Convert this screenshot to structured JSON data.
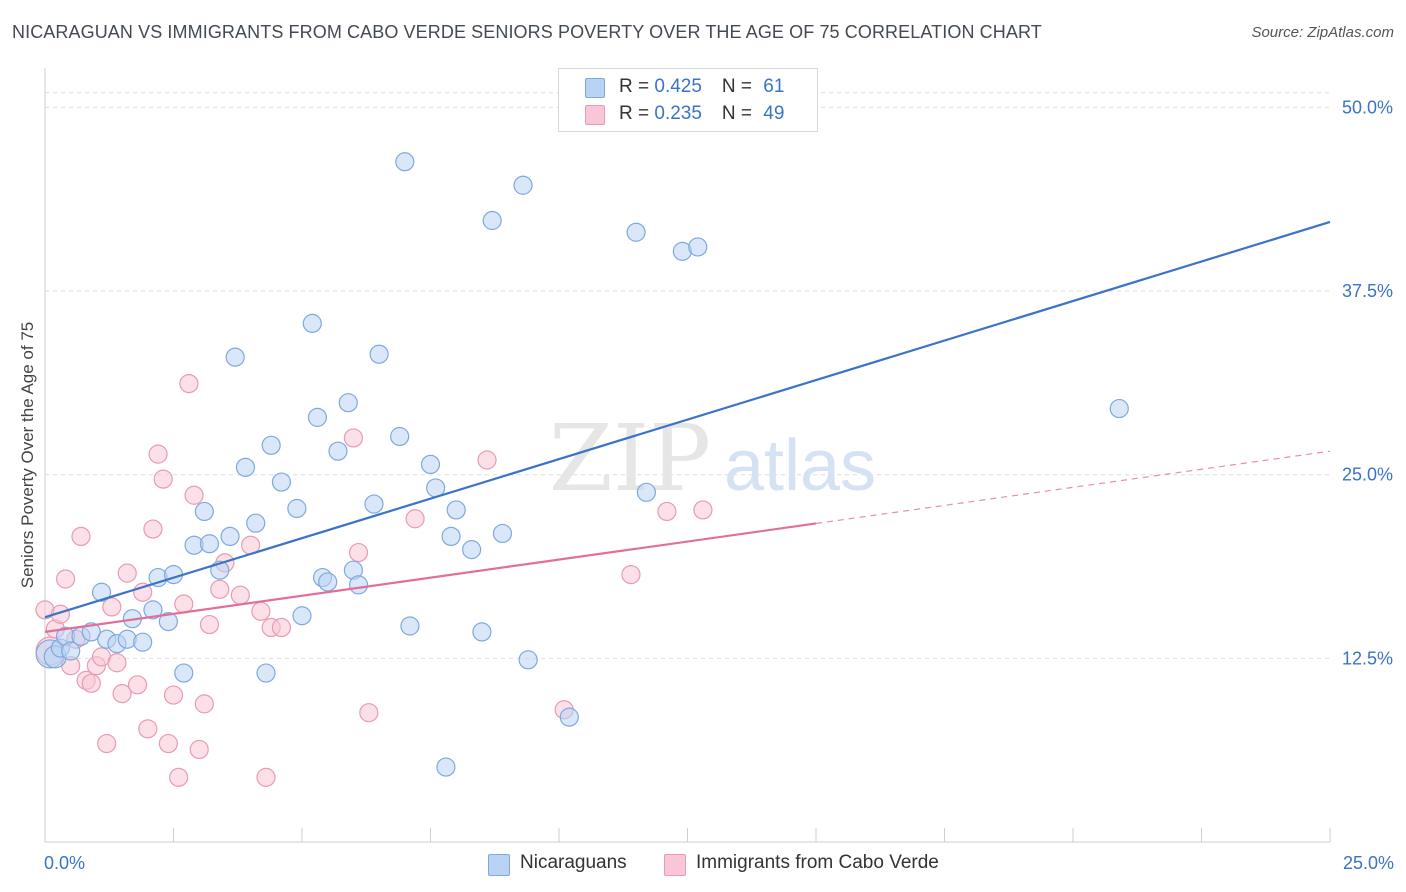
{
  "header": {
    "title": "NICARAGUAN VS IMMIGRANTS FROM CABO VERDE SENIORS POVERTY OVER THE AGE OF 75 CORRELATION CHART",
    "source": "Source: ZipAtlas.com"
  },
  "watermark": {
    "zip": "ZIP",
    "atlas": "atlas"
  },
  "legend": {
    "rows": [
      {
        "r_label": "R = ",
        "r_value": "0.425",
        "n_label": "N = ",
        "n_value": "61"
      },
      {
        "r_label": "R = ",
        "r_value": "0.235",
        "n_label": "N = ",
        "n_value": "49"
      }
    ]
  },
  "bottom_legend": {
    "series1": "Nicaraguans",
    "series2": "Immigrants from Cabo Verde"
  },
  "axis": {
    "x_min_label": "0.0%",
    "x_max_label": "25.0%"
  },
  "chart_data": {
    "type": "scatter",
    "title": "NICARAGUAN VS IMMIGRANTS FROM CABO VERDE SENIORS POVERTY OVER THE AGE OF 75 CORRELATION CHART",
    "xlabel": "",
    "ylabel": "Seniors Poverty Over the Age of 75",
    "xlim": [
      0,
      25
    ],
    "ylim": [
      0,
      52
    ],
    "y_ticks": [
      12.5,
      25.0,
      37.5,
      50.0
    ],
    "y_tick_labels": [
      "12.5%",
      "25.0%",
      "37.5%",
      "50.0%"
    ],
    "x_tick_labels": [
      "0.0%",
      "25.0%"
    ],
    "grid": "horizontal-dashed",
    "legend_position": "top-center",
    "colors": {
      "series1_fill": "#b9d3f4",
      "series1_stroke": "#7fa9dd",
      "series1_line": "#3a73c8",
      "series2_fill": "#f8c6d6",
      "series2_stroke": "#e99ab4",
      "series2_line": "#e0709a",
      "value_text": "#3a73c8"
    },
    "series": [
      {
        "name": "Nicaraguans",
        "r": 0.425,
        "n": 61,
        "trend": {
          "x": [
            0,
            25
          ],
          "y": [
            15.3,
            42.2
          ],
          "dashed_from_x": null
        },
        "points": [
          {
            "x": 0.1,
            "y": 12.8,
            "s": 14
          },
          {
            "x": 0.2,
            "y": 12.6,
            "s": 11
          },
          {
            "x": 0.3,
            "y": 13.2,
            "s": 9
          },
          {
            "x": 0.4,
            "y": 14.0,
            "s": 9
          },
          {
            "x": 0.5,
            "y": 13.0,
            "s": 9
          },
          {
            "x": 0.7,
            "y": 14.0,
            "s": 9
          },
          {
            "x": 0.9,
            "y": 14.3,
            "s": 9
          },
          {
            "x": 1.1,
            "y": 17.0,
            "s": 9
          },
          {
            "x": 1.2,
            "y": 13.8,
            "s": 9
          },
          {
            "x": 1.4,
            "y": 13.5,
            "s": 9
          },
          {
            "x": 1.6,
            "y": 13.8,
            "s": 9
          },
          {
            "x": 1.7,
            "y": 15.2,
            "s": 9
          },
          {
            "x": 1.9,
            "y": 13.6,
            "s": 9
          },
          {
            "x": 2.1,
            "y": 15.8,
            "s": 9
          },
          {
            "x": 2.2,
            "y": 18.0,
            "s": 9
          },
          {
            "x": 2.4,
            "y": 15.0,
            "s": 9
          },
          {
            "x": 2.5,
            "y": 18.2,
            "s": 9
          },
          {
            "x": 2.7,
            "y": 11.5,
            "s": 9
          },
          {
            "x": 2.9,
            "y": 20.2,
            "s": 9
          },
          {
            "x": 3.1,
            "y": 22.5,
            "s": 9
          },
          {
            "x": 3.2,
            "y": 20.3,
            "s": 9
          },
          {
            "x": 3.4,
            "y": 18.5,
            "s": 9
          },
          {
            "x": 3.6,
            "y": 20.8,
            "s": 9
          },
          {
            "x": 3.7,
            "y": 33.0,
            "s": 9
          },
          {
            "x": 3.9,
            "y": 25.5,
            "s": 9
          },
          {
            "x": 4.1,
            "y": 21.7,
            "s": 9
          },
          {
            "x": 4.3,
            "y": 11.5,
            "s": 9
          },
          {
            "x": 4.4,
            "y": 27.0,
            "s": 9
          },
          {
            "x": 4.6,
            "y": 24.5,
            "s": 9
          },
          {
            "x": 4.9,
            "y": 22.7,
            "s": 9
          },
          {
            "x": 5.0,
            "y": 15.4,
            "s": 9
          },
          {
            "x": 5.2,
            "y": 35.3,
            "s": 9
          },
          {
            "x": 5.3,
            "y": 28.9,
            "s": 9
          },
          {
            "x": 5.4,
            "y": 18.0,
            "s": 9
          },
          {
            "x": 5.5,
            "y": 17.7,
            "s": 9
          },
          {
            "x": 5.7,
            "y": 26.6,
            "s": 9
          },
          {
            "x": 5.9,
            "y": 29.9,
            "s": 9
          },
          {
            "x": 6.0,
            "y": 18.5,
            "s": 9
          },
          {
            "x": 6.1,
            "y": 17.5,
            "s": 9
          },
          {
            "x": 6.4,
            "y": 23.0,
            "s": 9
          },
          {
            "x": 6.5,
            "y": 33.2,
            "s": 9
          },
          {
            "x": 6.9,
            "y": 27.6,
            "s": 9
          },
          {
            "x": 7.0,
            "y": 46.3,
            "s": 9
          },
          {
            "x": 7.1,
            "y": 14.7,
            "s": 9
          },
          {
            "x": 7.5,
            "y": 25.7,
            "s": 9
          },
          {
            "x": 7.6,
            "y": 24.1,
            "s": 9
          },
          {
            "x": 7.8,
            "y": 5.1,
            "s": 9
          },
          {
            "x": 7.9,
            "y": 20.8,
            "s": 9
          },
          {
            "x": 8.0,
            "y": 22.6,
            "s": 9
          },
          {
            "x": 8.3,
            "y": 19.9,
            "s": 9
          },
          {
            "x": 8.5,
            "y": 14.3,
            "s": 9
          },
          {
            "x": 8.7,
            "y": 42.3,
            "s": 9
          },
          {
            "x": 8.9,
            "y": 21.0,
            "s": 9
          },
          {
            "x": 9.3,
            "y": 44.7,
            "s": 9
          },
          {
            "x": 9.4,
            "y": 12.4,
            "s": 9
          },
          {
            "x": 10.2,
            "y": 8.5,
            "s": 9
          },
          {
            "x": 11.5,
            "y": 41.5,
            "s": 9
          },
          {
            "x": 11.7,
            "y": 23.8,
            "s": 9
          },
          {
            "x": 12.4,
            "y": 40.2,
            "s": 9
          },
          {
            "x": 12.7,
            "y": 40.5,
            "s": 9
          },
          {
            "x": 20.9,
            "y": 29.5,
            "s": 9
          }
        ]
      },
      {
        "name": "Immigrants from Cabo Verde",
        "r": 0.235,
        "n": 49,
        "trend": {
          "x": [
            0,
            25
          ],
          "y": [
            14.3,
            26.6
          ],
          "dashed_from_x": 15.0
        },
        "points": [
          {
            "x": 0.0,
            "y": 15.8,
            "s": 9
          },
          {
            "x": 0.1,
            "y": 13.0,
            "s": 14
          },
          {
            "x": 0.2,
            "y": 14.5,
            "s": 9
          },
          {
            "x": 0.3,
            "y": 15.5,
            "s": 9
          },
          {
            "x": 0.4,
            "y": 17.9,
            "s": 9
          },
          {
            "x": 0.5,
            "y": 12.0,
            "s": 9
          },
          {
            "x": 0.6,
            "y": 13.8,
            "s": 9
          },
          {
            "x": 0.7,
            "y": 20.8,
            "s": 9
          },
          {
            "x": 0.8,
            "y": 11.0,
            "s": 9
          },
          {
            "x": 0.9,
            "y": 10.8,
            "s": 9
          },
          {
            "x": 1.0,
            "y": 12.0,
            "s": 9
          },
          {
            "x": 1.1,
            "y": 12.6,
            "s": 9
          },
          {
            "x": 1.2,
            "y": 6.7,
            "s": 9
          },
          {
            "x": 1.3,
            "y": 16.0,
            "s": 9
          },
          {
            "x": 1.4,
            "y": 12.2,
            "s": 9
          },
          {
            "x": 1.5,
            "y": 10.1,
            "s": 9
          },
          {
            "x": 1.6,
            "y": 18.3,
            "s": 9
          },
          {
            "x": 1.8,
            "y": 10.7,
            "s": 9
          },
          {
            "x": 1.9,
            "y": 17.0,
            "s": 9
          },
          {
            "x": 2.0,
            "y": 7.7,
            "s": 9
          },
          {
            "x": 2.1,
            "y": 21.3,
            "s": 9
          },
          {
            "x": 2.2,
            "y": 26.4,
            "s": 9
          },
          {
            "x": 2.3,
            "y": 24.7,
            "s": 9
          },
          {
            "x": 2.4,
            "y": 6.7,
            "s": 9
          },
          {
            "x": 2.5,
            "y": 10.0,
            "s": 9
          },
          {
            "x": 2.6,
            "y": 4.4,
            "s": 9
          },
          {
            "x": 2.7,
            "y": 16.2,
            "s": 9
          },
          {
            "x": 2.8,
            "y": 31.2,
            "s": 9
          },
          {
            "x": 2.9,
            "y": 23.6,
            "s": 9
          },
          {
            "x": 3.0,
            "y": 6.3,
            "s": 9
          },
          {
            "x": 3.1,
            "y": 9.4,
            "s": 9
          },
          {
            "x": 3.2,
            "y": 14.8,
            "s": 9
          },
          {
            "x": 3.4,
            "y": 17.2,
            "s": 9
          },
          {
            "x": 3.5,
            "y": 19.0,
            "s": 9
          },
          {
            "x": 3.8,
            "y": 16.8,
            "s": 9
          },
          {
            "x": 4.0,
            "y": 20.2,
            "s": 9
          },
          {
            "x": 4.2,
            "y": 15.7,
            "s": 9
          },
          {
            "x": 4.3,
            "y": 4.4,
            "s": 9
          },
          {
            "x": 4.4,
            "y": 14.6,
            "s": 9
          },
          {
            "x": 4.6,
            "y": 14.6,
            "s": 9
          },
          {
            "x": 6.0,
            "y": 27.5,
            "s": 9
          },
          {
            "x": 6.1,
            "y": 19.7,
            "s": 9
          },
          {
            "x": 6.3,
            "y": 8.8,
            "s": 9
          },
          {
            "x": 7.2,
            "y": 22.0,
            "s": 9
          },
          {
            "x": 8.6,
            "y": 26.0,
            "s": 9
          },
          {
            "x": 10.1,
            "y": 9.0,
            "s": 9
          },
          {
            "x": 11.4,
            "y": 18.2,
            "s": 9
          },
          {
            "x": 12.1,
            "y": 22.5,
            "s": 9
          },
          {
            "x": 12.8,
            "y": 22.6,
            "s": 9
          }
        ]
      }
    ]
  }
}
